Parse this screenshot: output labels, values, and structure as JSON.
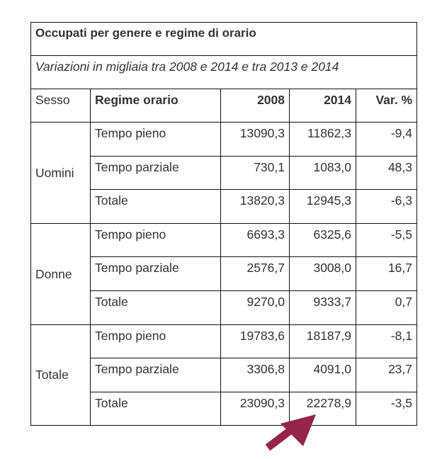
{
  "title": "Occupati per genere e regime di orario",
  "subtitle": "Variazioni in migliaia tra 2008 e 2014 e tra 2013 e 2014",
  "headers": {
    "sesso": "Sesso",
    "regime": "Regime orario",
    "y2008": "2008",
    "y2014": "2014",
    "var": "Var. %"
  },
  "groups": [
    {
      "sesso": "Uomini",
      "rows": [
        {
          "regime": "Tempo pieno",
          "y2008": "13090,3",
          "y2014": "11862,3",
          "var": "-9,4"
        },
        {
          "regime": "Tempo parziale",
          "y2008": "730,1",
          "y2014": "1083,0",
          "var": "48,3"
        },
        {
          "regime": "Totale",
          "y2008": "13820,3",
          "y2014": "12945,3",
          "var": "-6,3"
        }
      ]
    },
    {
      "sesso": "Donne",
      "rows": [
        {
          "regime": "Tempo pieno",
          "y2008": "6693,3",
          "y2014": "6325,6",
          "var": "-5,5"
        },
        {
          "regime": "Tempo parziale",
          "y2008": "2576,7",
          "y2014": "3008,0",
          "var": "16,7"
        },
        {
          "regime": "Totale",
          "y2008": "9270,0",
          "y2014": "9333,7",
          "var": "0,7"
        }
      ]
    },
    {
      "sesso": "Totale",
      "rows": [
        {
          "regime": "Tempo pieno",
          "y2008": "19783,6",
          "y2014": "18187,9",
          "var": "-8,1"
        },
        {
          "regime": "Tempo parziale",
          "y2008": "3306,8",
          "y2014": "4091,0",
          "var": "23,7"
        },
        {
          "regime": "Totale",
          "y2008": "23090,3",
          "y2014": "22278,9",
          "var": "-3,5"
        }
      ]
    }
  ],
  "annotation": {
    "icon": "arrow-up-right-icon",
    "color": "#95234a"
  }
}
